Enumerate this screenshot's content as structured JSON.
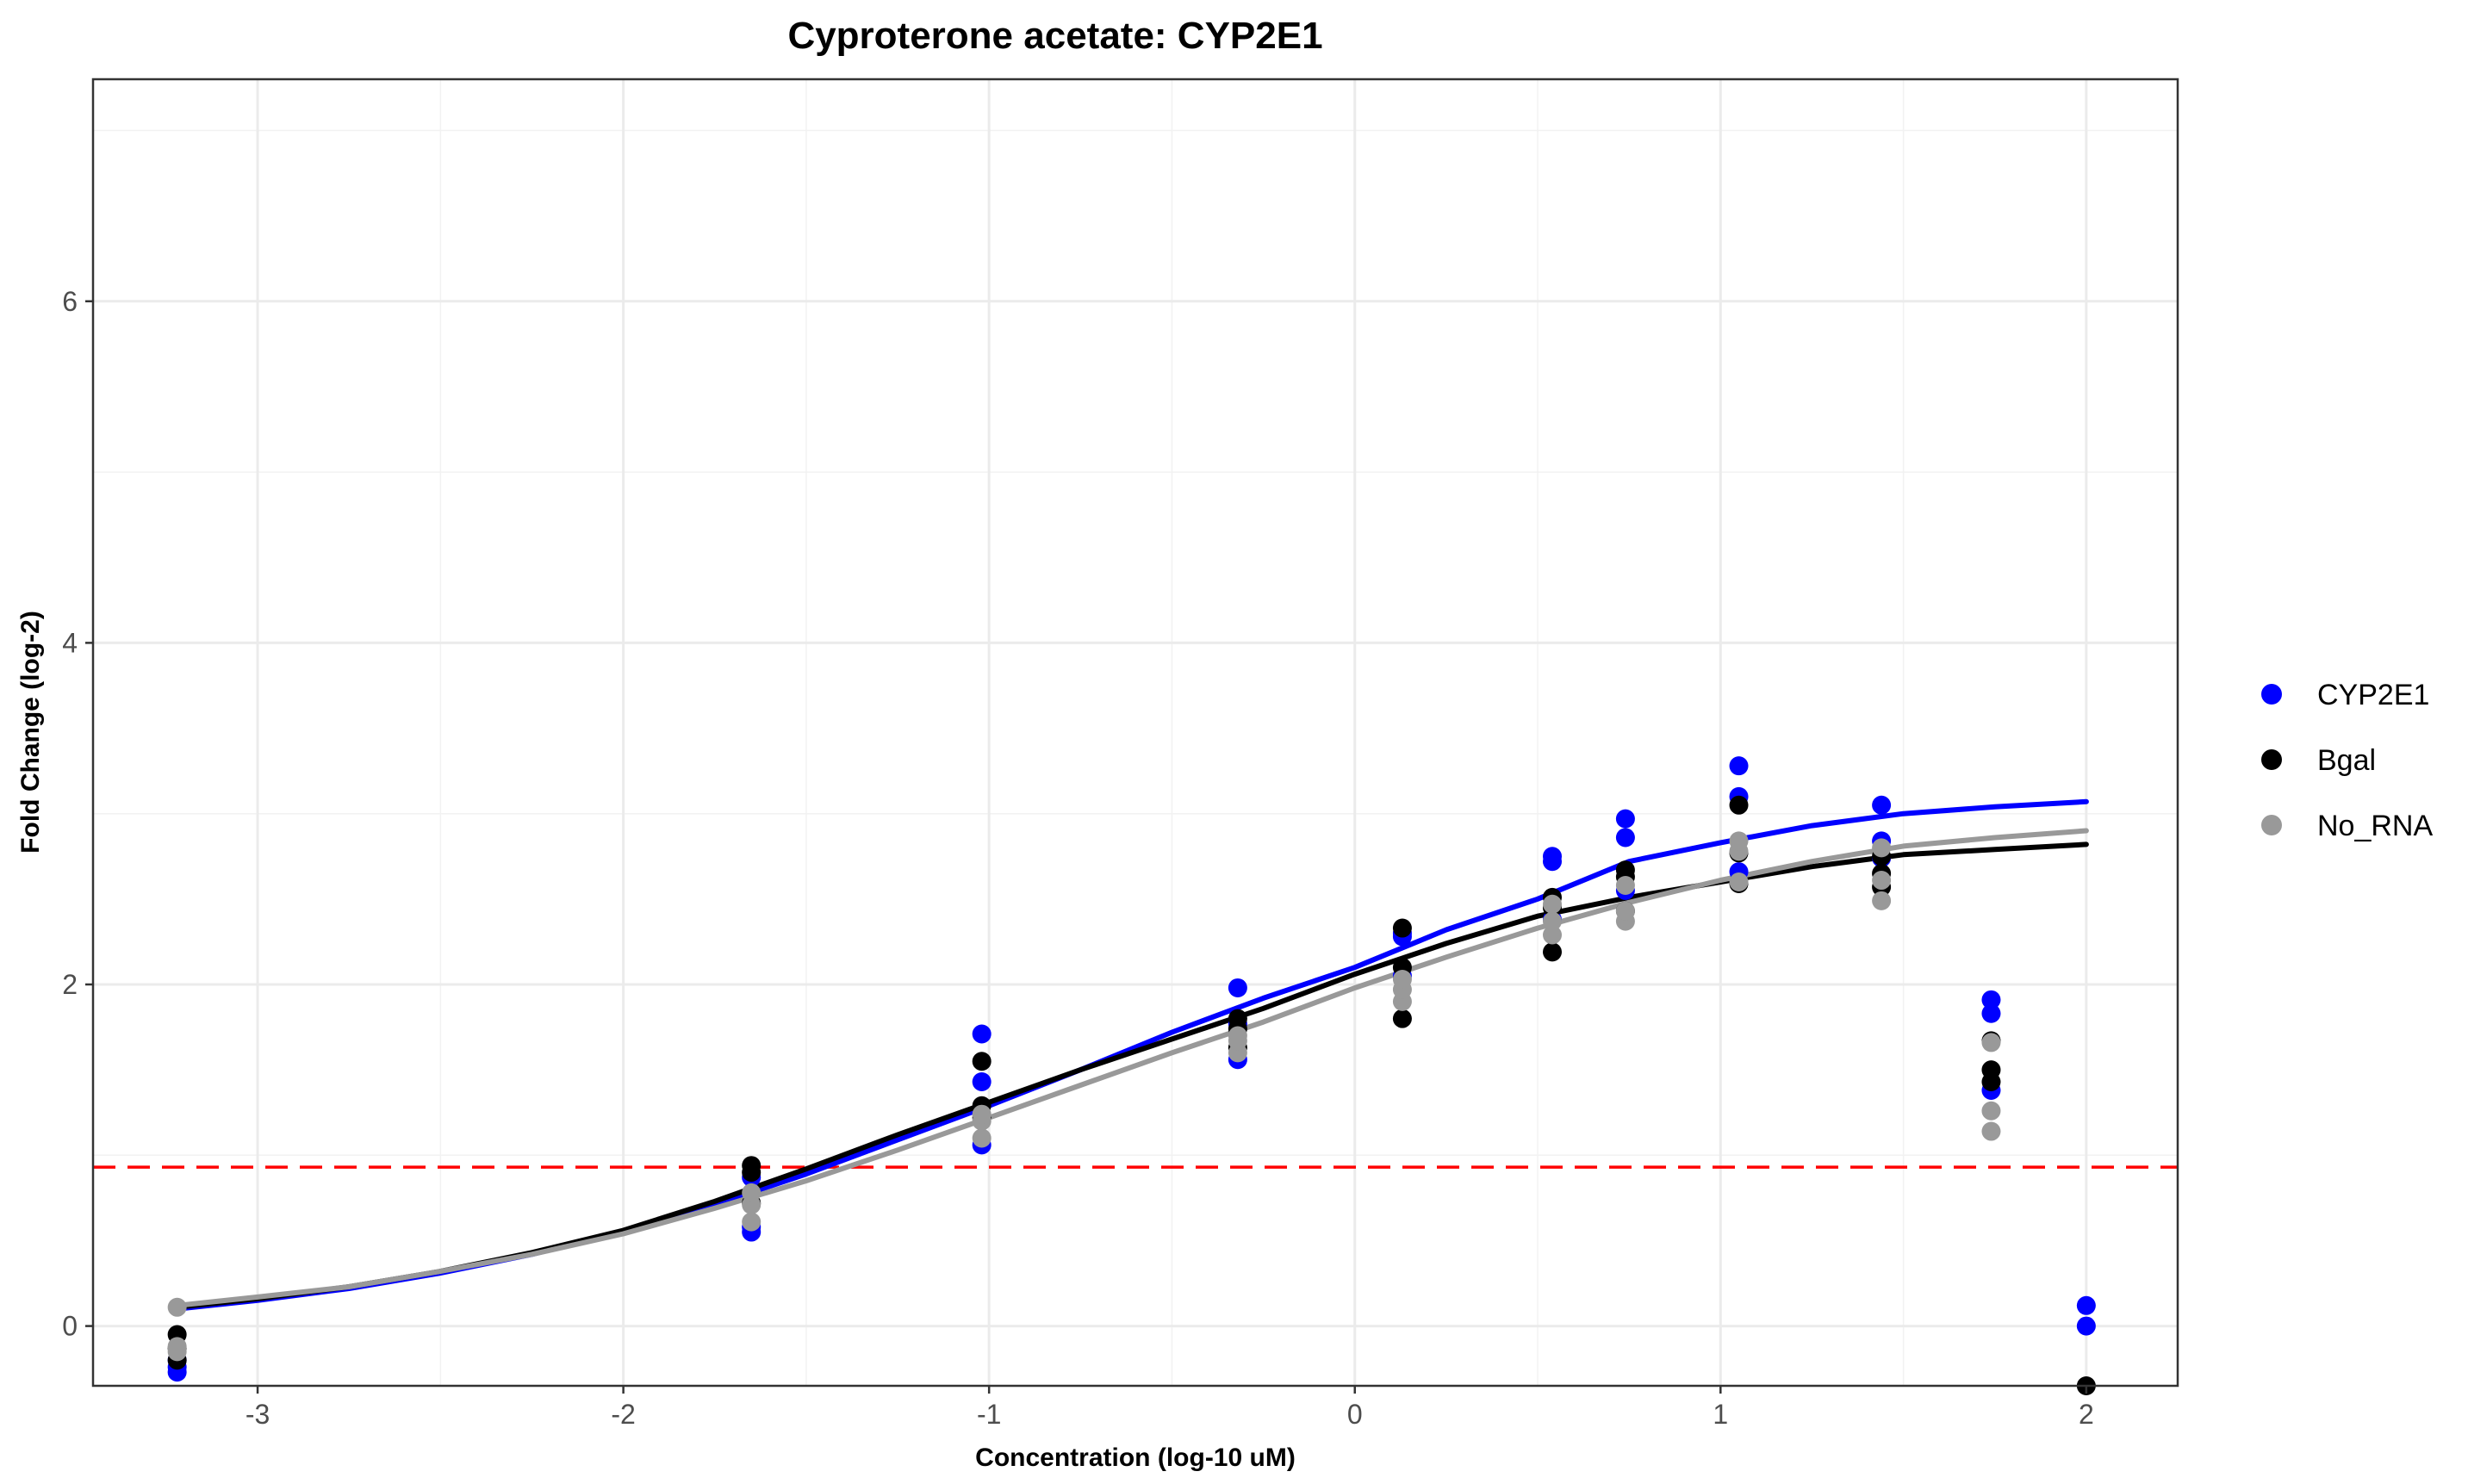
{
  "chart_data": {
    "type": "scatter",
    "title": "Cyproterone acetate: CYP2E1",
    "xlabel": "Concentration (log-10 uM)",
    "ylabel": "Fold Change (log-2)",
    "xlim": [
      -3.45,
      2.25
    ],
    "ylim": [
      -0.35,
      7.3
    ],
    "x_ticks": [
      -3,
      -2,
      -1,
      0,
      1,
      2
    ],
    "x_tick_labels": [
      "-3",
      "-2",
      "-1",
      "0",
      "1",
      "2"
    ],
    "y_ticks": [
      0,
      2,
      4,
      6
    ],
    "y_tick_labels": [
      "0",
      "2",
      "4",
      "6"
    ],
    "x_minor_gridlines": [
      -2.5,
      -1.5,
      -0.5,
      0.5,
      1.5
    ],
    "y_minor_gridlines": [
      1,
      3,
      5,
      7
    ],
    "grid": true,
    "legend_position": "right",
    "reference_line": {
      "y": 0.93,
      "color": "#ff0000",
      "style": "dashed"
    },
    "series": [
      {
        "name": "CYP2E1",
        "color": "#0000ff",
        "points": [
          [
            -3.22,
            -0.27
          ],
          [
            -3.22,
            -0.24
          ],
          [
            -3.22,
            -0.2
          ],
          [
            -1.65,
            0.55
          ],
          [
            -1.65,
            0.58
          ],
          [
            -1.65,
            0.87
          ],
          [
            -1.02,
            1.06
          ],
          [
            -1.02,
            1.43
          ],
          [
            -1.02,
            1.71
          ],
          [
            -0.32,
            1.56
          ],
          [
            -0.32,
            1.77
          ],
          [
            -0.32,
            1.98
          ],
          [
            0.13,
            2.05
          ],
          [
            0.13,
            2.28
          ],
          [
            0.13,
            2.3
          ],
          [
            0.54,
            2.38
          ],
          [
            0.54,
            2.72
          ],
          [
            0.54,
            2.75
          ],
          [
            0.74,
            2.55
          ],
          [
            0.74,
            2.86
          ],
          [
            0.74,
            2.97
          ],
          [
            1.05,
            2.66
          ],
          [
            1.05,
            3.1
          ],
          [
            1.05,
            3.28
          ],
          [
            1.44,
            2.74
          ],
          [
            1.44,
            2.84
          ],
          [
            1.44,
            3.05
          ],
          [
            1.74,
            1.38
          ],
          [
            1.74,
            1.83
          ],
          [
            1.74,
            1.91
          ],
          [
            2.0,
            0.0
          ],
          [
            2.0,
            0.12
          ]
        ],
        "curve": [
          [
            -3.22,
            0.1
          ],
          [
            -3.0,
            0.15
          ],
          [
            -2.75,
            0.22
          ],
          [
            -2.5,
            0.31
          ],
          [
            -2.25,
            0.42
          ],
          [
            -2.0,
            0.55
          ],
          [
            -1.75,
            0.71
          ],
          [
            -1.5,
            0.89
          ],
          [
            -1.25,
            1.09
          ],
          [
            -1.0,
            1.29
          ],
          [
            -0.75,
            1.5
          ],
          [
            -0.5,
            1.72
          ],
          [
            -0.25,
            1.92
          ],
          [
            0.0,
            2.1
          ],
          [
            0.25,
            2.32
          ],
          [
            0.5,
            2.5
          ],
          [
            0.75,
            2.72
          ],
          [
            1.0,
            2.83
          ],
          [
            1.25,
            2.93
          ],
          [
            1.5,
            3.0
          ],
          [
            1.75,
            3.04
          ],
          [
            2.0,
            3.07
          ]
        ]
      },
      {
        "name": "Bgal",
        "color": "#000000",
        "points": [
          [
            -3.22,
            -0.2
          ],
          [
            -3.22,
            -0.13
          ],
          [
            -3.22,
            -0.05
          ],
          [
            -1.65,
            0.72
          ],
          [
            -1.65,
            0.9
          ],
          [
            -1.65,
            0.94
          ],
          [
            -1.02,
            1.22
          ],
          [
            -1.02,
            1.29
          ],
          [
            -1.02,
            1.55
          ],
          [
            -0.32,
            1.63
          ],
          [
            -0.32,
            1.74
          ],
          [
            -0.32,
            1.8
          ],
          [
            0.13,
            1.8
          ],
          [
            0.13,
            2.1
          ],
          [
            0.13,
            2.33
          ],
          [
            0.54,
            2.19
          ],
          [
            0.54,
            2.45
          ],
          [
            0.54,
            2.51
          ],
          [
            0.74,
            2.43
          ],
          [
            0.74,
            2.63
          ],
          [
            0.74,
            2.67
          ],
          [
            1.05,
            2.59
          ],
          [
            1.05,
            2.77
          ],
          [
            1.05,
            3.05
          ],
          [
            1.44,
            2.57
          ],
          [
            1.44,
            2.65
          ],
          [
            1.44,
            2.75
          ],
          [
            1.74,
            1.43
          ],
          [
            1.74,
            1.5
          ],
          [
            1.74,
            1.67
          ],
          [
            2.0,
            -0.35
          ]
        ],
        "curve": [
          [
            -3.22,
            0.11
          ],
          [
            -3.0,
            0.16
          ],
          [
            -2.75,
            0.23
          ],
          [
            -2.5,
            0.32
          ],
          [
            -2.25,
            0.43
          ],
          [
            -2.0,
            0.56
          ],
          [
            -1.75,
            0.73
          ],
          [
            -1.5,
            0.92
          ],
          [
            -1.25,
            1.12
          ],
          [
            -1.0,
            1.31
          ],
          [
            -0.75,
            1.5
          ],
          [
            -0.5,
            1.68
          ],
          [
            -0.25,
            1.86
          ],
          [
            0.0,
            2.06
          ],
          [
            0.25,
            2.24
          ],
          [
            0.5,
            2.4
          ],
          [
            0.75,
            2.51
          ],
          [
            1.0,
            2.6
          ],
          [
            1.25,
            2.69
          ],
          [
            1.5,
            2.76
          ],
          [
            1.75,
            2.79
          ],
          [
            2.0,
            2.82
          ]
        ]
      },
      {
        "name": "No_RNA",
        "color": "#999999",
        "points": [
          [
            -3.22,
            -0.15
          ],
          [
            -3.22,
            -0.12
          ],
          [
            -3.22,
            0.11
          ],
          [
            -1.65,
            0.61
          ],
          [
            -1.65,
            0.71
          ],
          [
            -1.65,
            0.78
          ],
          [
            -1.02,
            1.1
          ],
          [
            -1.02,
            1.2
          ],
          [
            -1.02,
            1.24
          ],
          [
            -0.32,
            1.6
          ],
          [
            -0.32,
            1.67
          ],
          [
            -0.32,
            1.7
          ],
          [
            0.13,
            1.9
          ],
          [
            0.13,
            1.97
          ],
          [
            0.13,
            2.03
          ],
          [
            0.54,
            2.29
          ],
          [
            0.54,
            2.37
          ],
          [
            0.54,
            2.47
          ],
          [
            0.74,
            2.37
          ],
          [
            0.74,
            2.43
          ],
          [
            0.74,
            2.58
          ],
          [
            1.05,
            2.6
          ],
          [
            1.05,
            2.78
          ],
          [
            1.05,
            2.84
          ],
          [
            1.44,
            2.49
          ],
          [
            1.44,
            2.61
          ],
          [
            1.44,
            2.8
          ],
          [
            1.74,
            1.14
          ],
          [
            1.74,
            1.26
          ],
          [
            1.74,
            1.66
          ]
        ],
        "curve": [
          [
            -3.22,
            0.12
          ],
          [
            -3.0,
            0.17
          ],
          [
            -2.75,
            0.23
          ],
          [
            -2.5,
            0.32
          ],
          [
            -2.25,
            0.42
          ],
          [
            -2.0,
            0.54
          ],
          [
            -1.75,
            0.69
          ],
          [
            -1.5,
            0.85
          ],
          [
            -1.25,
            1.03
          ],
          [
            -1.0,
            1.22
          ],
          [
            -0.75,
            1.41
          ],
          [
            -0.5,
            1.6
          ],
          [
            -0.25,
            1.78
          ],
          [
            0.0,
            1.98
          ],
          [
            0.25,
            2.16
          ],
          [
            0.5,
            2.33
          ],
          [
            0.75,
            2.48
          ],
          [
            1.0,
            2.61
          ],
          [
            1.25,
            2.72
          ],
          [
            1.5,
            2.81
          ],
          [
            1.75,
            2.86
          ],
          [
            2.0,
            2.9
          ]
        ]
      }
    ]
  }
}
